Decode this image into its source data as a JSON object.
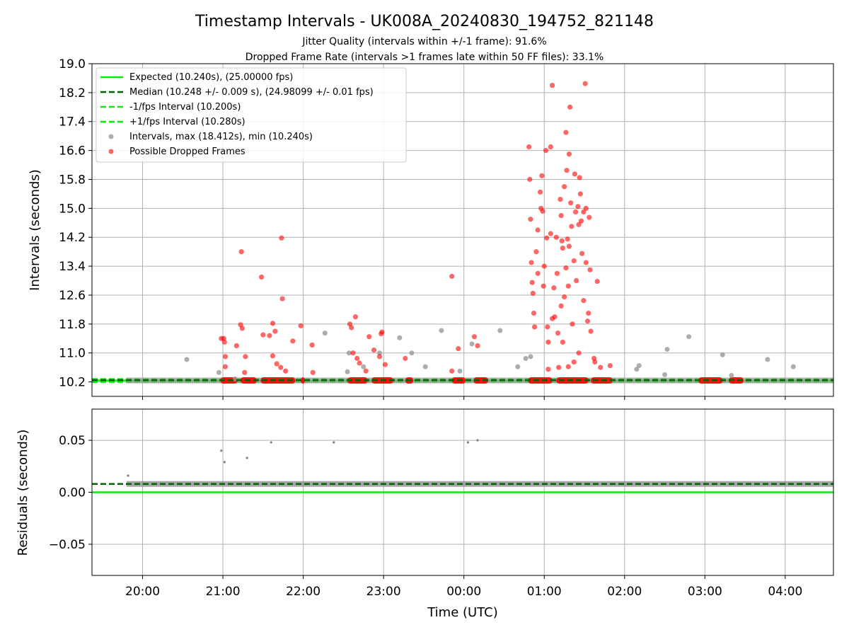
{
  "figure": {
    "title": "Timestamp Intervals - UK008A_20240830_194752_821148",
    "subtitle_line1": "Jitter Quality (intervals within +/-1 frame): 91.6%",
    "subtitle_line2": "Dropped Frame Rate (intervals >1 frames late within 50 FF files): 33.1%"
  },
  "colors": {
    "expected": "#00ee00",
    "median": "#006400",
    "interval_bounds": "#00ee00",
    "intervals": "#999999",
    "dropped": "#ff0000",
    "residuals": "#808080",
    "grid": "#b0b0b0"
  },
  "chart_data": [
    {
      "type": "scatter",
      "panel": "intervals",
      "ylabel": "Intervals (seconds)",
      "xlabel": "",
      "xlim_hours": [
        19.37,
        28.6
      ],
      "ylim": [
        9.8,
        19.0
      ],
      "y_ticks": [
        "10.2",
        "11.0",
        "11.8",
        "12.6",
        "13.4",
        "14.2",
        "15.0",
        "15.8",
        "16.6",
        "17.4",
        "18.2",
        "19.0"
      ],
      "x_ticks": [
        "20:00",
        "21:00",
        "22:00",
        "23:00",
        "00:00",
        "01:00",
        "02:00",
        "03:00",
        "04:00"
      ],
      "grid": true,
      "legend_position": "top-left",
      "legend": [
        "Expected (10.240s), (25.00000 fps)",
        "Median (10.248 +/- 0.009 s), (24.98099 +/- 0.01 fps)",
        "-1/fps Interval (10.200s)",
        "+1/fps Interval (10.280s)",
        "Intervals, max (18.412s), min (10.240s)",
        "Possible Dropped Frames"
      ],
      "lines": {
        "expected": 10.24,
        "median": 10.248,
        "minus_interval": 10.2,
        "plus_interval": 10.28
      },
      "baseline_band": {
        "y": 10.24,
        "x_start": 19.8,
        "x_end": 28.6
      },
      "dropped_runs": [
        [
          20.97,
          21.18
        ],
        [
          21.22,
          21.42
        ],
        [
          21.47,
          21.9
        ],
        [
          21.97,
          22.02
        ],
        [
          22.55,
          22.8
        ],
        [
          22.85,
          23.12
        ],
        [
          23.27,
          23.37
        ],
        [
          23.85,
          24.02
        ],
        [
          24.12,
          24.3
        ],
        [
          24.8,
          25.1
        ],
        [
          25.15,
          25.55
        ],
        [
          25.58,
          25.85
        ],
        [
          26.92,
          27.22
        ],
        [
          27.3,
          27.48
        ]
      ],
      "intervals_points": [
        [
          20.55,
          10.82
        ],
        [
          20.95,
          10.46
        ],
        [
          21.15,
          10.28
        ],
        [
          22.27,
          11.55
        ],
        [
          22.55,
          10.48
        ],
        [
          22.57,
          11.0
        ],
        [
          22.75,
          10.62
        ],
        [
          22.95,
          11.0
        ],
        [
          23.2,
          11.42
        ],
        [
          23.35,
          11.0
        ],
        [
          23.52,
          10.62
        ],
        [
          23.72,
          11.62
        ],
        [
          23.95,
          10.5
        ],
        [
          24.1,
          11.25
        ],
        [
          24.45,
          11.62
        ],
        [
          24.67,
          10.62
        ],
        [
          24.77,
          10.85
        ],
        [
          24.83,
          10.9
        ],
        [
          26.15,
          10.55
        ],
        [
          26.18,
          10.65
        ],
        [
          26.5,
          10.4
        ],
        [
          26.53,
          11.1
        ],
        [
          26.8,
          11.45
        ],
        [
          27.22,
          10.95
        ],
        [
          27.33,
          10.38
        ],
        [
          27.78,
          10.82
        ],
        [
          28.1,
          10.62
        ]
      ],
      "dropped_points": [
        [
          20.98,
          11.4
        ],
        [
          21.01,
          11.4
        ],
        [
          21.02,
          11.3
        ],
        [
          21.03,
          10.9
        ],
        [
          21.03,
          10.62
        ],
        [
          21.17,
          11.2
        ],
        [
          21.22,
          11.78
        ],
        [
          21.24,
          11.68
        ],
        [
          21.23,
          13.8
        ],
        [
          21.28,
          10.9
        ],
        [
          21.27,
          10.46
        ],
        [
          21.48,
          13.1
        ],
        [
          21.5,
          11.5
        ],
        [
          21.58,
          11.48
        ],
        [
          21.62,
          11.82
        ],
        [
          21.65,
          11.6
        ],
        [
          21.62,
          10.92
        ],
        [
          21.67,
          10.7
        ],
        [
          21.72,
          10.6
        ],
        [
          21.74,
          12.5
        ],
        [
          21.73,
          14.18
        ],
        [
          21.78,
          10.5
        ],
        [
          21.87,
          11.33
        ],
        [
          21.97,
          11.75
        ],
        [
          22.11,
          11.22
        ],
        [
          22.12,
          10.46
        ],
        [
          22.58,
          11.8
        ],
        [
          22.6,
          11.7
        ],
        [
          22.62,
          11.0
        ],
        [
          22.65,
          12.0
        ],
        [
          22.67,
          10.85
        ],
        [
          22.7,
          10.72
        ],
        [
          22.78,
          10.5
        ],
        [
          22.82,
          11.45
        ],
        [
          22.88,
          11.08
        ],
        [
          22.95,
          10.9
        ],
        [
          22.97,
          11.53
        ],
        [
          22.98,
          11.58
        ],
        [
          23.02,
          10.68
        ],
        [
          23.27,
          10.85
        ],
        [
          23.85,
          13.12
        ],
        [
          23.85,
          10.5
        ],
        [
          23.93,
          11.12
        ],
        [
          24.13,
          11.45
        ],
        [
          24.17,
          11.2
        ],
        [
          24.81,
          16.7
        ],
        [
          24.82,
          15.8
        ],
        [
          24.83,
          14.7
        ],
        [
          24.84,
          13.5
        ],
        [
          24.85,
          12.95
        ],
        [
          24.86,
          12.65
        ],
        [
          24.87,
          12.1
        ],
        [
          24.88,
          11.72
        ],
        [
          24.9,
          13.8
        ],
        [
          24.92,
          13.2
        ],
        [
          24.92,
          14.4
        ],
        [
          24.95,
          15.45
        ],
        [
          24.96,
          15.0
        ],
        [
          24.97,
          15.9
        ],
        [
          24.98,
          14.92
        ],
        [
          24.99,
          12.85
        ],
        [
          25.0,
          13.4
        ],
        [
          25.02,
          16.6
        ],
        [
          25.03,
          14.18
        ],
        [
          25.04,
          11.72
        ],
        [
          25.05,
          11.3
        ],
        [
          25.05,
          10.55
        ],
        [
          25.08,
          16.7
        ],
        [
          25.08,
          14.3
        ],
        [
          25.1,
          18.4
        ],
        [
          25.1,
          11.95
        ],
        [
          25.12,
          12.8
        ],
        [
          25.13,
          12.0
        ],
        [
          25.15,
          14.2
        ],
        [
          25.16,
          13.2
        ],
        [
          25.17,
          11.55
        ],
        [
          25.18,
          10.6
        ],
        [
          25.2,
          15.25
        ],
        [
          25.21,
          14.8
        ],
        [
          25.21,
          12.3
        ],
        [
          25.22,
          14.1
        ],
        [
          25.23,
          13.9
        ],
        [
          25.23,
          11.3
        ],
        [
          25.25,
          15.6
        ],
        [
          25.25,
          12.55
        ],
        [
          25.27,
          17.1
        ],
        [
          25.27,
          13.35
        ],
        [
          25.28,
          16.05
        ],
        [
          25.29,
          14.15
        ],
        [
          25.3,
          12.85
        ],
        [
          25.3,
          10.62
        ],
        [
          25.31,
          16.5
        ],
        [
          25.31,
          13.95
        ],
        [
          25.32,
          17.8
        ],
        [
          25.33,
          15.15
        ],
        [
          25.34,
          14.5
        ],
        [
          25.35,
          11.8
        ],
        [
          25.37,
          13.55
        ],
        [
          25.37,
          10.75
        ],
        [
          25.38,
          15.95
        ],
        [
          25.39,
          14.9
        ],
        [
          25.4,
          13.0
        ],
        [
          25.42,
          15.05
        ],
        [
          25.43,
          14.55
        ],
        [
          25.43,
          11.0
        ],
        [
          25.44,
          15.85
        ],
        [
          25.45,
          15.4
        ],
        [
          25.46,
          14.65
        ],
        [
          25.47,
          13.75
        ],
        [
          25.49,
          14.9
        ],
        [
          25.49,
          12.45
        ],
        [
          25.51,
          18.45
        ],
        [
          25.52,
          15.0
        ],
        [
          25.52,
          13.5
        ],
        [
          25.54,
          11.88
        ],
        [
          25.55,
          12.1
        ],
        [
          25.56,
          14.75
        ],
        [
          25.57,
          13.3
        ],
        [
          25.58,
          11.6
        ],
        [
          25.62,
          10.85
        ],
        [
          25.63,
          10.75
        ],
        [
          25.66,
          12.98
        ],
        [
          25.7,
          10.6
        ],
        [
          25.82,
          10.65
        ]
      ],
      "summary": {
        "max_interval": 18.412,
        "min_interval": 10.24
      }
    },
    {
      "type": "scatter",
      "panel": "residuals",
      "ylabel": "Residuals (seconds)",
      "xlabel": "Time (UTC)",
      "xlim_hours": [
        19.37,
        28.6
      ],
      "ylim": [
        -0.08,
        0.08
      ],
      "y_ticks": [
        "−0.05",
        "0.00",
        "0.05"
      ],
      "x_ticks": [
        "20:00",
        "21:00",
        "22:00",
        "23:00",
        "00:00",
        "01:00",
        "02:00",
        "03:00",
        "04:00"
      ],
      "grid": true,
      "zero_line": 0.0,
      "median_line": 0.008,
      "band": {
        "y": 0.008,
        "x_start": 19.8,
        "x_end": 28.6
      },
      "outliers": [
        [
          19.82,
          0.016
        ],
        [
          20.98,
          0.04
        ],
        [
          21.02,
          0.029
        ],
        [
          21.3,
          0.033
        ],
        [
          21.6,
          0.048
        ],
        [
          22.38,
          0.048
        ],
        [
          24.05,
          0.048
        ],
        [
          24.17,
          0.05
        ]
      ]
    }
  ]
}
